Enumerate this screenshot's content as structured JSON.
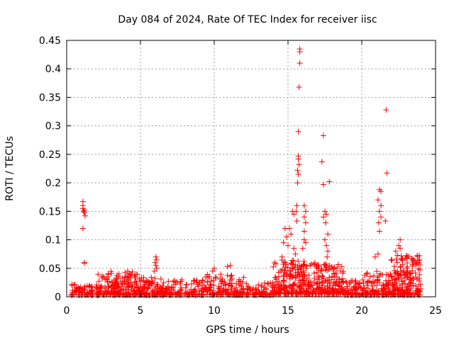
{
  "chart_data": {
    "type": "scatter",
    "title": "Day 084 of 2024, Rate Of TEC Index for receiver iisc",
    "xlabel": "GPS time / hours",
    "ylabel": "ROTI / TECUs",
    "xlim": [
      0,
      25
    ],
    "ylim": [
      0,
      0.45
    ],
    "xticks": [
      0,
      5,
      10,
      15,
      20,
      25
    ],
    "yticks": [
      0,
      0.05,
      0.1,
      0.15,
      0.2,
      0.25,
      0.3,
      0.35,
      0.4,
      0.45
    ],
    "grid": true,
    "marker": "+",
    "color": "#ff0000",
    "series": [
      {
        "name": "ROTI",
        "points": [
          [
            1.1,
            0.167
          ],
          [
            1.1,
            0.16
          ],
          [
            1.1,
            0.155
          ],
          [
            1.15,
            0.15
          ],
          [
            1.2,
            0.152
          ],
          [
            1.2,
            0.148
          ],
          [
            1.25,
            0.142
          ],
          [
            1.1,
            0.12
          ],
          [
            1.2,
            0.06
          ],
          [
            1.2,
            0.059
          ],
          [
            15.6,
            0.133
          ],
          [
            15.8,
            0.435
          ],
          [
            15.8,
            0.43
          ],
          [
            15.8,
            0.41
          ],
          [
            15.75,
            0.368
          ],
          [
            15.7,
            0.29
          ],
          [
            15.7,
            0.247
          ],
          [
            15.7,
            0.242
          ],
          [
            15.75,
            0.232
          ],
          [
            15.65,
            0.222
          ],
          [
            15.7,
            0.215
          ],
          [
            15.65,
            0.2
          ],
          [
            15.6,
            0.16
          ],
          [
            15.55,
            0.15
          ],
          [
            15.4,
            0.145
          ],
          [
            15.3,
            0.15
          ],
          [
            15.1,
            0.12
          ],
          [
            15.2,
            0.11
          ],
          [
            14.8,
            0.12
          ],
          [
            14.9,
            0.105
          ],
          [
            14.7,
            0.095
          ],
          [
            15.0,
            0.09
          ],
          [
            15.4,
            0.085
          ],
          [
            15.5,
            0.075
          ],
          [
            14.6,
            0.07
          ],
          [
            16.1,
            0.16
          ],
          [
            16.2,
            0.15
          ],
          [
            16.1,
            0.14
          ],
          [
            16.2,
            0.13
          ],
          [
            16.1,
            0.115
          ],
          [
            16.1,
            0.1
          ],
          [
            16.2,
            0.095
          ],
          [
            16.0,
            0.085
          ],
          [
            17.4,
            0.283
          ],
          [
            17.3,
            0.237
          ],
          [
            17.4,
            0.197
          ],
          [
            17.8,
            0.202
          ],
          [
            17.5,
            0.15
          ],
          [
            17.6,
            0.145
          ],
          [
            17.4,
            0.14
          ],
          [
            17.55,
            0.13
          ],
          [
            17.7,
            0.11
          ],
          [
            17.5,
            0.1
          ],
          [
            17.6,
            0.09
          ],
          [
            17.7,
            0.08
          ],
          [
            17.65,
            0.07
          ],
          [
            21.65,
            0.328
          ],
          [
            21.7,
            0.217
          ],
          [
            21.2,
            0.188
          ],
          [
            21.3,
            0.185
          ],
          [
            21.1,
            0.17
          ],
          [
            21.3,
            0.16
          ],
          [
            21.2,
            0.15
          ],
          [
            21.3,
            0.14
          ],
          [
            21.15,
            0.13
          ],
          [
            21.6,
            0.133
          ],
          [
            21.2,
            0.115
          ],
          [
            22.6,
            0.1
          ],
          [
            22.5,
            0.09
          ],
          [
            22.3,
            0.08
          ],
          [
            22.6,
            0.085
          ],
          [
            21.1,
            0.075
          ],
          [
            20.9,
            0.07
          ],
          [
            22.0,
            0.065
          ],
          [
            22.4,
            0.06
          ],
          [
            6.05,
            0.07
          ],
          [
            6.1,
            0.065
          ],
          [
            6.0,
            0.06
          ],
          [
            6.05,
            0.055
          ],
          [
            6.1,
            0.05
          ],
          [
            5.95,
            0.045
          ],
          [
            10.0,
            0.05
          ],
          [
            9.9,
            0.045
          ],
          [
            11.1,
            0.055
          ],
          [
            10.9,
            0.053
          ]
        ]
      }
    ],
    "dense_clusters": [
      {
        "x_range": [
          0.3,
          1.8
        ],
        "y_range": [
          0.003,
          0.022
        ],
        "count": 70
      },
      {
        "x_range": [
          2.0,
          4.8
        ],
        "y_range": [
          0.003,
          0.045
        ],
        "count": 200
      },
      {
        "x_range": [
          4.8,
          6.5
        ],
        "y_range": [
          0.003,
          0.035
        ],
        "count": 120
      },
      {
        "x_range": [
          6.5,
          9.0
        ],
        "y_range": [
          0.003,
          0.03
        ],
        "count": 110
      },
      {
        "x_range": [
          9.0,
          12.0
        ],
        "y_range": [
          0.003,
          0.04
        ],
        "count": 160
      },
      {
        "x_range": [
          12.0,
          14.0
        ],
        "y_range": [
          0.003,
          0.025
        ],
        "count": 80
      },
      {
        "x_range": [
          14.0,
          16.5
        ],
        "y_range": [
          0.005,
          0.065
        ],
        "count": 220
      },
      {
        "x_range": [
          16.5,
          18.8
        ],
        "y_range": [
          0.005,
          0.06
        ],
        "count": 180
      },
      {
        "x_range": [
          18.8,
          20.2
        ],
        "y_range": [
          0.003,
          0.03
        ],
        "count": 80
      },
      {
        "x_range": [
          20.2,
          22.0
        ],
        "y_range": [
          0.003,
          0.045
        ],
        "count": 110
      },
      {
        "x_range": [
          22.0,
          24.0
        ],
        "y_range": [
          0.003,
          0.075
        ],
        "count": 200
      }
    ]
  }
}
